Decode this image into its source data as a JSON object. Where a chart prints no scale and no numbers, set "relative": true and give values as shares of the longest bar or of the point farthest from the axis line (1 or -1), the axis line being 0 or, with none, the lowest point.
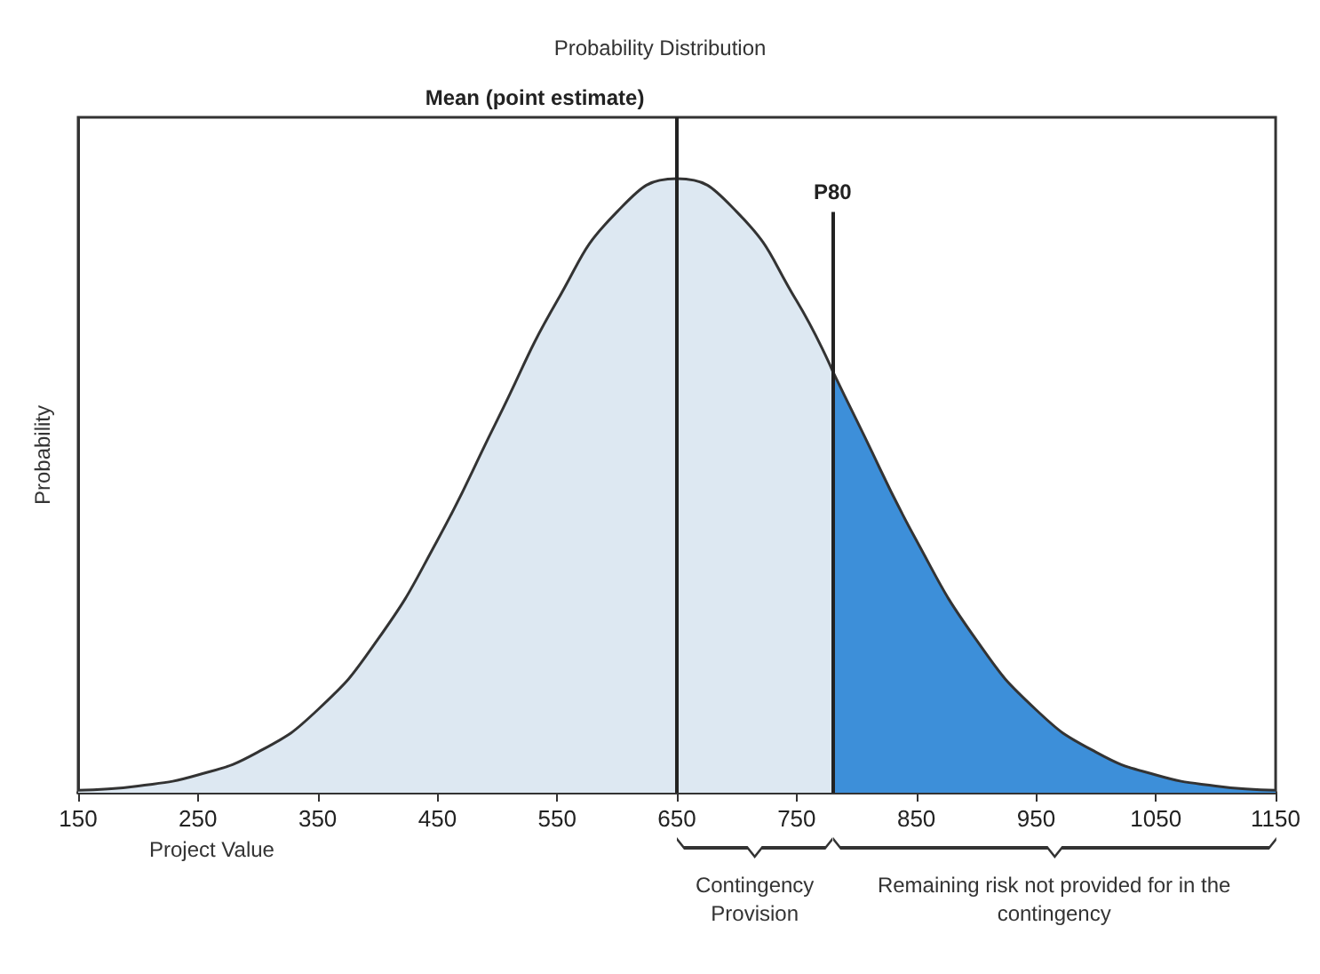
{
  "chart_data": {
    "type": "area",
    "title": "Probability Distribution",
    "xlabel": "Project Value",
    "ylabel": "Probability",
    "relative": true,
    "xlim": [
      150,
      1150
    ],
    "xticks": [
      150,
      250,
      350,
      450,
      550,
      650,
      750,
      850,
      950,
      1050,
      1150
    ],
    "series": [
      {
        "color": "#dde8f2",
        "x": [
          150,
          200,
          250,
          300,
          350,
          400,
          450,
          500,
          550,
          600,
          650,
          700,
          750,
          780
        ],
        "values": [
          0.004,
          0.011,
          0.029,
          0.066,
          0.135,
          0.249,
          0.411,
          0.607,
          0.801,
          0.946,
          1,
          0.946,
          0.801,
          0.687
        ]
      },
      {
        "color": "#3d8fd9",
        "x": [
          780,
          800,
          850,
          900,
          950,
          1000,
          1050,
          1100,
          1150
        ],
        "values": [
          0.687,
          0.607,
          0.411,
          0.249,
          0.135,
          0.066,
          0.029,
          0.011,
          0.004
        ]
      }
    ],
    "ref_lines": [
      {
        "axis": "x",
        "value": 650,
        "label": "Mean (point estimate)"
      },
      {
        "axis": "x",
        "value": 780,
        "label": "P80"
      }
    ],
    "annotations": [
      "Contingency Provision",
      "Remaining risk not provided for in the contingency"
    ],
    "marker": "none"
  }
}
